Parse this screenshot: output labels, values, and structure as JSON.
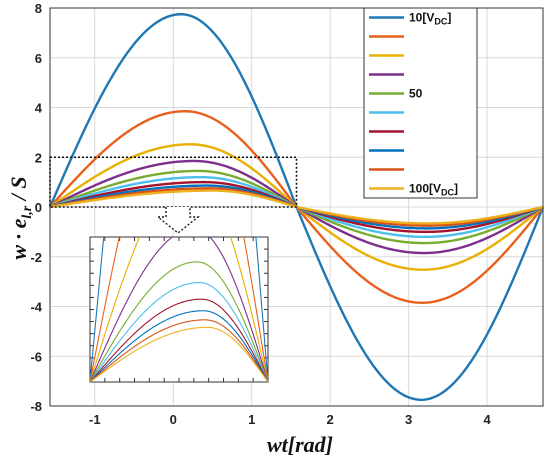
{
  "chart_data": {
    "type": "line",
    "xlabel": "wt[rad]",
    "ylabel": "w · e_{l,r} / S",
    "xlim": [
      -1.5708,
      4.7124
    ],
    "ylim": [
      -8,
      8
    ],
    "xticks": [
      "-1",
      "0",
      "1",
      "2",
      "3",
      "4"
    ],
    "yticks": [
      "8",
      "6",
      "4",
      "2",
      "0",
      "-2",
      "-4",
      "-6",
      "-8"
    ],
    "grid": true,
    "legend_position": "top-right",
    "legend_labels": [
      "10[VDC]",
      "",
      "",
      "",
      "50",
      "",
      "",
      "",
      "",
      "100[VDC]"
    ],
    "series": [
      {
        "color": "#1f77b4",
        "peak": 7.75,
        "trough_value": -7.75,
        "peak_x": 0.1
      },
      {
        "color": "#e8601c",
        "peak": 3.85,
        "trough_value": -3.85,
        "peak_x": 0.15
      },
      {
        "color": "#e8b000",
        "peak": 2.52,
        "trough_value": -2.52,
        "peak_x": 0.22
      },
      {
        "color": "#7e2f8e",
        "peak": 1.85,
        "trough_value": -1.85,
        "peak_x": 0.27
      },
      {
        "color": "#77ac30",
        "peak": 1.45,
        "trough_value": -1.45,
        "peak_x": 0.32
      },
      {
        "color": "#4dbeee",
        "peak": 1.2,
        "trough_value": -1.2,
        "peak_x": 0.36
      },
      {
        "color": "#a2142f",
        "peak": 1.0,
        "trough_value": -1.0,
        "peak_x": 0.4
      },
      {
        "color": "#0072bd",
        "peak": 0.86,
        "trough_value": -0.86,
        "peak_x": 0.43
      },
      {
        "color": "#d95319",
        "peak": 0.75,
        "trough_value": -0.75,
        "peak_x": 0.46
      },
      {
        "color": "#edb120",
        "peak": 0.66,
        "trough_value": -0.66,
        "peak_x": 0.5
      }
    ],
    "inset": {
      "description": "zoomed region",
      "xlim": [
        -1.5708,
        1.5708
      ],
      "ylim": [
        0,
        2
      ]
    }
  }
}
